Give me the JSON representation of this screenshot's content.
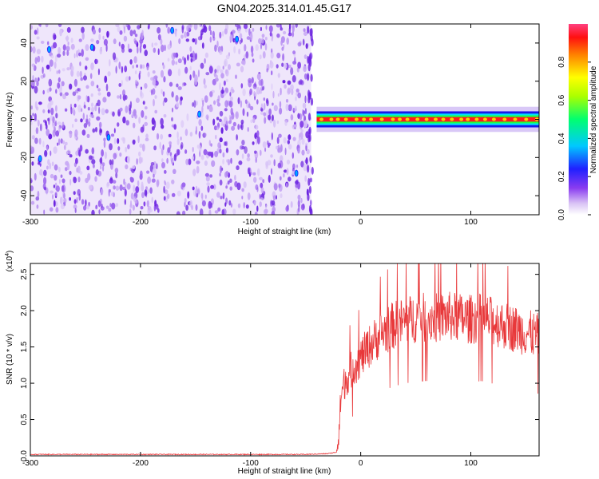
{
  "figure": {
    "title": "GN04.2025.314.01.45.G17"
  },
  "chart_data": [
    {
      "type": "heatmap",
      "title": "GN04.2025.314.01.45.G17",
      "xlabel": "Height of straight line (km)",
      "ylabel": "Frequency (Hz)",
      "xlim": [
        -300,
        162
      ],
      "ylim": [
        -50,
        50
      ],
      "x_ticks": [
        -300,
        -200,
        -100,
        0,
        100
      ],
      "y_ticks": [
        -40,
        -20,
        0,
        20,
        40
      ],
      "grid": false,
      "colorbar": {
        "label": "Normalized spectral amplitude",
        "range": [
          0.0,
          1.0
        ],
        "ticks": [
          0.0,
          0.2,
          0.4,
          0.6,
          0.8
        ],
        "colormap": "rainbow (violet-blue-cyan-green-yellow-red-pink)"
      },
      "regions": [
        {
          "x_range": [
            -300,
            -45
          ],
          "freq_range": [
            -50,
            50
          ],
          "amplitude": "low noise, approx. 0.0-0.3"
        },
        {
          "x_range": [
            -40,
            162
          ],
          "freq_center": 0,
          "freq_halfwidth": 3,
          "amplitude": "strong narrowband signal, approx. 0.9-1.0"
        }
      ]
    },
    {
      "type": "line",
      "xlabel": "Height of straight line (km)",
      "ylabel": "SNR (10 * v/v)",
      "y_multiplier": "(x10^4)",
      "xlim": [
        -300,
        162
      ],
      "ylim": [
        0,
        2.65
      ],
      "x_ticks": [
        -300,
        -200,
        -100,
        0,
        100
      ],
      "y_ticks": [
        0.0,
        0.5,
        1.0,
        1.5,
        2.0,
        2.5
      ],
      "grid": false,
      "color": "#e8383a",
      "series": [
        {
          "x": [
            -300,
            -250,
            -200,
            -150,
            -100,
            -50,
            -30,
            -22,
            -20,
            -18,
            -15,
            -10,
            -5,
            0,
            5,
            10,
            20,
            30,
            40,
            50,
            60,
            70,
            80,
            90,
            100,
            110,
            120,
            130,
            140,
            150,
            162
          ],
          "y": [
            0.02,
            0.02,
            0.02,
            0.02,
            0.02,
            0.02,
            0.03,
            0.05,
            0.3,
            0.8,
            1.0,
            1.15,
            1.25,
            1.35,
            1.45,
            1.55,
            1.7,
            1.8,
            1.85,
            1.9,
            1.9,
            1.9,
            1.92,
            1.9,
            1.88,
            1.9,
            1.85,
            1.8,
            1.75,
            1.7,
            1.65
          ]
        }
      ]
    }
  ]
}
